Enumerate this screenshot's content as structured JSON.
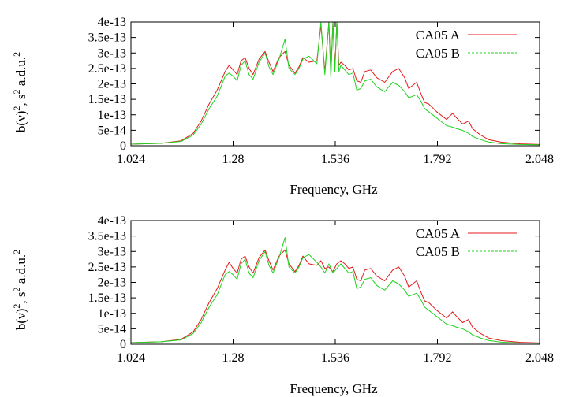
{
  "colors": {
    "series_a": "#e41a1c",
    "series_b": "#1fd31f"
  },
  "chart_data": [
    {
      "type": "line",
      "title": "",
      "xlabel": "Frequency, GHz",
      "ylabel": "b(ν)², s² a.d.u.²",
      "ylabel_parts": {
        "a": "b(ν)",
        "b": "2",
        "c": ", s",
        "d": "2",
        "e": " a.d.u.",
        "f": "2"
      },
      "xlim": [
        1.024,
        2.048
      ],
      "ylim": [
        0,
        4e-13
      ],
      "xticks": [
        1.024,
        1.28,
        1.536,
        1.792,
        2.048
      ],
      "xtick_labels": [
        "1.024",
        "1.28",
        "1.536",
        "1.792",
        "2.048"
      ],
      "yticks": [
        0,
        5e-14,
        1e-13,
        1.5e-13,
        2e-13,
        2.5e-13,
        3e-13,
        3.5e-13,
        4e-13
      ],
      "ytick_labels": [
        "0",
        "5e-14",
        "1e-13",
        "1.5e-13",
        "2e-13",
        "2.5e-13",
        "3e-13",
        "3.5e-13",
        "4e-13"
      ],
      "grid": false,
      "legend_position": "top-right",
      "series": [
        {
          "name": "CA05 A",
          "x": [
            1.024,
            1.1,
            1.15,
            1.18,
            1.2,
            1.22,
            1.24,
            1.26,
            1.27,
            1.28,
            1.29,
            1.3,
            1.31,
            1.32,
            1.33,
            1.345,
            1.36,
            1.37,
            1.38,
            1.395,
            1.41,
            1.42,
            1.435,
            1.445,
            1.455,
            1.47,
            1.49,
            1.5,
            1.51,
            1.52,
            1.525,
            1.53,
            1.535,
            1.54,
            1.545,
            1.55,
            1.56,
            1.57,
            1.58,
            1.59,
            1.6,
            1.61,
            1.625,
            1.64,
            1.66,
            1.68,
            1.695,
            1.71,
            1.72,
            1.74,
            1.75,
            1.76,
            1.77,
            1.79,
            1.8,
            1.815,
            1.83,
            1.84,
            1.855,
            1.87,
            1.88,
            1.9,
            1.92,
            1.95,
            2.0,
            2.048
          ],
          "y": [
            5e-15,
            8e-15,
            1.6e-14,
            4e-14,
            8e-14,
            1.35e-13,
            1.8e-13,
            2.4e-13,
            2.6e-13,
            2.45e-13,
            2.3e-13,
            2.75e-13,
            2.85e-13,
            2.5e-13,
            2.3e-13,
            2.8e-13,
            3.05e-13,
            2.7e-13,
            2.4e-13,
            2.85e-13,
            3.05e-13,
            2.6e-13,
            2.35e-13,
            2.55e-13,
            2.85e-13,
            2.7e-13,
            2.75e-13,
            3.9e-13,
            2.4e-13,
            4e-13,
            2.3e-13,
            4e-13,
            2.5e-13,
            4e-13,
            2.6e-13,
            2.7e-13,
            2.6e-13,
            2.45e-13,
            2.5e-13,
            2.1e-13,
            2.05e-13,
            2.4e-13,
            2.45e-13,
            2.2e-13,
            2.05e-13,
            2.4e-13,
            2.5e-13,
            2.2e-13,
            1.85e-13,
            2.05e-13,
            1.7e-13,
            1.4e-13,
            1.35e-13,
            1.1e-13,
            1e-13,
            8.5e-14,
            1.05e-13,
            9e-14,
            7e-14,
            8e-14,
            5.5e-14,
            3.5e-14,
            2e-14,
            1.2e-14,
            6e-15,
            4e-15
          ]
        },
        {
          "name": "CA05 B",
          "x": [
            1.024,
            1.1,
            1.15,
            1.18,
            1.2,
            1.22,
            1.24,
            1.26,
            1.27,
            1.28,
            1.29,
            1.3,
            1.31,
            1.32,
            1.33,
            1.345,
            1.36,
            1.37,
            1.38,
            1.395,
            1.41,
            1.42,
            1.435,
            1.445,
            1.455,
            1.47,
            1.49,
            1.5,
            1.51,
            1.52,
            1.525,
            1.53,
            1.535,
            1.54,
            1.545,
            1.55,
            1.56,
            1.57,
            1.58,
            1.59,
            1.6,
            1.61,
            1.625,
            1.64,
            1.66,
            1.68,
            1.695,
            1.71,
            1.72,
            1.74,
            1.75,
            1.76,
            1.77,
            1.79,
            1.8,
            1.815,
            1.83,
            1.84,
            1.855,
            1.87,
            1.88,
            1.9,
            1.92,
            1.95,
            2.0,
            2.048
          ],
          "y": [
            5e-15,
            8e-15,
            1.4e-14,
            3.5e-14,
            7e-14,
            1.2e-13,
            1.6e-13,
            2.25e-13,
            2.35e-13,
            2.25e-13,
            2.1e-13,
            2.6e-13,
            2.75e-13,
            2.3e-13,
            2.15e-13,
            2.7e-13,
            3e-13,
            2.55e-13,
            2.3e-13,
            2.8e-13,
            3.45e-13,
            2.5e-13,
            2.3e-13,
            2.5e-13,
            2.8e-13,
            2.9e-13,
            2.65e-13,
            4e-13,
            2.3e-13,
            4e-13,
            2.2e-13,
            4e-13,
            2.4e-13,
            4e-13,
            2.4e-13,
            2.6e-13,
            2.45e-13,
            2.3e-13,
            2.35e-13,
            1.8e-13,
            1.85e-13,
            2.1e-13,
            2.15e-13,
            1.9e-13,
            1.75e-13,
            2.05e-13,
            1.95e-13,
            1.75e-13,
            1.55e-13,
            1.65e-13,
            1.45e-13,
            1.2e-13,
            1.1e-13,
            9e-14,
            8e-14,
            6.5e-14,
            6e-14,
            5.5e-14,
            5e-14,
            4e-14,
            3e-14,
            2e-14,
            1.2e-14,
            7e-15,
            4e-15,
            3e-15
          ]
        }
      ]
    },
    {
      "type": "line",
      "title": "",
      "xlabel": "Frequency, GHz",
      "ylabel": "b(ν)², s² a.d.u.²",
      "ylabel_parts": {
        "a": "b(ν)",
        "b": "2",
        "c": ", s",
        "d": "2",
        "e": " a.d.u.",
        "f": "2"
      },
      "xlim": [
        1.024,
        2.048
      ],
      "ylim": [
        0,
        4e-13
      ],
      "xticks": [
        1.024,
        1.28,
        1.536,
        1.792,
        2.048
      ],
      "xtick_labels": [
        "1.024",
        "1.28",
        "1.536",
        "1.792",
        "2.048"
      ],
      "yticks": [
        0,
        5e-14,
        1e-13,
        1.5e-13,
        2e-13,
        2.5e-13,
        3e-13,
        3.5e-13,
        4e-13
      ],
      "ytick_labels": [
        "0",
        "5e-14",
        "1e-13",
        "1.5e-13",
        "2e-13",
        "2.5e-13",
        "3e-13",
        "3.5e-13",
        "4e-13"
      ],
      "grid": false,
      "legend_position": "top-right",
      "series": [
        {
          "name": "CA05 A",
          "x": [
            1.024,
            1.1,
            1.15,
            1.18,
            1.2,
            1.22,
            1.24,
            1.26,
            1.27,
            1.28,
            1.29,
            1.3,
            1.31,
            1.32,
            1.33,
            1.345,
            1.36,
            1.37,
            1.38,
            1.395,
            1.41,
            1.42,
            1.435,
            1.445,
            1.455,
            1.47,
            1.49,
            1.5,
            1.51,
            1.52,
            1.53,
            1.54,
            1.55,
            1.56,
            1.57,
            1.58,
            1.59,
            1.6,
            1.61,
            1.625,
            1.64,
            1.66,
            1.68,
            1.695,
            1.71,
            1.72,
            1.74,
            1.75,
            1.76,
            1.77,
            1.79,
            1.8,
            1.815,
            1.83,
            1.84,
            1.855,
            1.87,
            1.88,
            1.9,
            1.92,
            1.95,
            2.0,
            2.048
          ],
          "y": [
            5e-15,
            8e-15,
            1.6e-14,
            4e-14,
            8e-14,
            1.35e-13,
            1.8e-13,
            2.4e-13,
            2.65e-13,
            2.45e-13,
            2.3e-13,
            2.75e-13,
            2.85e-13,
            2.5e-13,
            2.3e-13,
            2.8e-13,
            3.05e-13,
            2.7e-13,
            2.4e-13,
            2.85e-13,
            3.05e-13,
            2.6e-13,
            2.35e-13,
            2.55e-13,
            2.85e-13,
            2.6e-13,
            2.55e-13,
            2.7e-13,
            2.45e-13,
            2.5e-13,
            2.35e-13,
            2.6e-13,
            2.7e-13,
            2.6e-13,
            2.45e-13,
            2.5e-13,
            2.1e-13,
            2.05e-13,
            2.4e-13,
            2.45e-13,
            2.2e-13,
            2.05e-13,
            2.4e-13,
            2.5e-13,
            2.2e-13,
            1.85e-13,
            2.05e-13,
            1.7e-13,
            1.4e-13,
            1.35e-13,
            1.1e-13,
            1e-13,
            8.5e-14,
            1.05e-13,
            9e-14,
            7e-14,
            8e-14,
            5.5e-14,
            3.5e-14,
            2e-14,
            1.2e-14,
            6e-15,
            4e-15
          ]
        },
        {
          "name": "CA05 B",
          "x": [
            1.024,
            1.1,
            1.15,
            1.18,
            1.2,
            1.22,
            1.24,
            1.26,
            1.27,
            1.28,
            1.29,
            1.3,
            1.31,
            1.32,
            1.33,
            1.345,
            1.36,
            1.37,
            1.38,
            1.395,
            1.41,
            1.42,
            1.435,
            1.445,
            1.455,
            1.47,
            1.49,
            1.5,
            1.51,
            1.52,
            1.53,
            1.54,
            1.55,
            1.56,
            1.57,
            1.58,
            1.59,
            1.6,
            1.61,
            1.625,
            1.64,
            1.66,
            1.68,
            1.695,
            1.71,
            1.72,
            1.74,
            1.75,
            1.76,
            1.77,
            1.79,
            1.8,
            1.815,
            1.83,
            1.84,
            1.855,
            1.87,
            1.88,
            1.9,
            1.92,
            1.95,
            2.0,
            2.048
          ],
          "y": [
            5e-15,
            8e-15,
            1.4e-14,
            3.5e-14,
            7e-14,
            1.2e-13,
            1.6e-13,
            2.25e-13,
            2.35e-13,
            2.25e-13,
            2.1e-13,
            2.6e-13,
            2.75e-13,
            2.3e-13,
            2.15e-13,
            2.7e-13,
            3e-13,
            2.55e-13,
            2.3e-13,
            2.8e-13,
            3.45e-13,
            2.5e-13,
            2.3e-13,
            2.5e-13,
            2.8e-13,
            2.9e-13,
            2.65e-13,
            2.5e-13,
            2.3e-13,
            2.6e-13,
            2.3e-13,
            2.45e-13,
            2.6e-13,
            2.45e-13,
            2.3e-13,
            2.35e-13,
            1.8e-13,
            1.85e-13,
            2.1e-13,
            2.15e-13,
            1.9e-13,
            1.75e-13,
            2.05e-13,
            1.95e-13,
            1.75e-13,
            1.55e-13,
            1.65e-13,
            1.45e-13,
            1.2e-13,
            1.1e-13,
            9e-14,
            8e-14,
            6.5e-14,
            6e-14,
            5.5e-14,
            5e-14,
            4e-14,
            3e-14,
            2e-14,
            1.2e-14,
            7e-15,
            4e-15,
            3e-15
          ]
        }
      ]
    }
  ]
}
